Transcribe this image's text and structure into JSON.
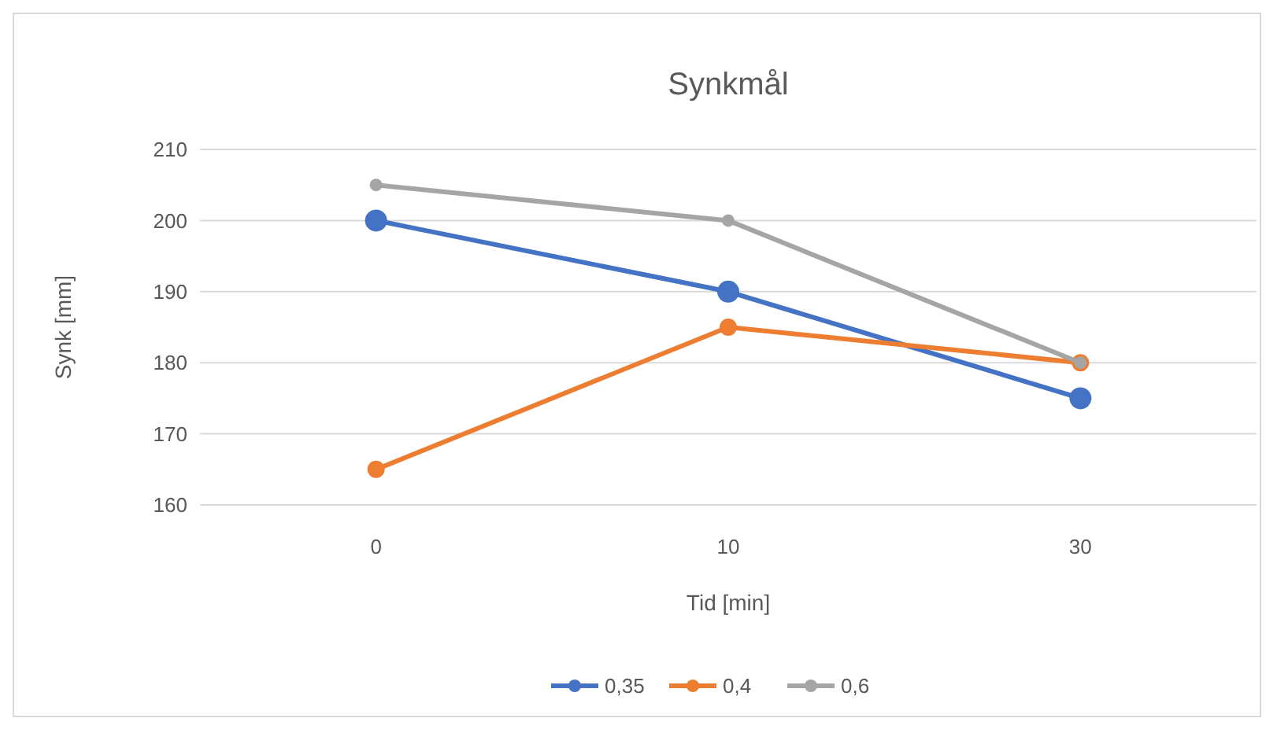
{
  "chart_data": {
    "type": "line",
    "title": "Synkmål",
    "xlabel": "Tid [min]",
    "ylabel": "Synk [mm]",
    "categories": [
      "0",
      "10",
      "30"
    ],
    "series": [
      {
        "name": "0,35",
        "color": "#4472c4",
        "values": [
          200,
          190,
          175
        ]
      },
      {
        "name": "0,4",
        "color": "#ed7d31",
        "values": [
          165,
          185,
          180
        ]
      },
      {
        "name": "0,6",
        "color": "#a5a5a5",
        "values": [
          205,
          200,
          180
        ]
      }
    ],
    "ylim": [
      160,
      210
    ],
    "yticks": [
      160,
      170,
      180,
      190,
      200,
      210
    ],
    "grid": "y",
    "legend": "bottom",
    "marker": "circle",
    "line_style": "solid"
  }
}
